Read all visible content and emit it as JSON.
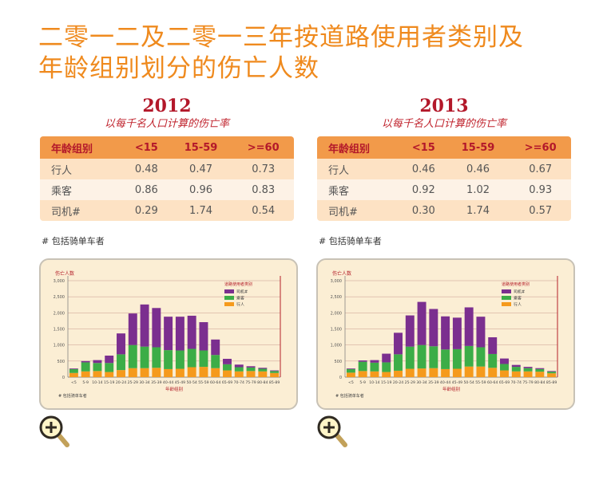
{
  "title": {
    "line1": "二零一二及二零一三年按道路使用者类别及",
    "line2": "年龄组别划分的伤亡人数"
  },
  "panels": [
    {
      "year": "2012",
      "subtitle": "以每千名人口计算的伤亡率",
      "headers": [
        "年龄组别",
        "<15",
        "15-59",
        ">=60"
      ],
      "rows": [
        {
          "label": "行人",
          "values": [
            "0.48",
            "0.47",
            "0.73"
          ]
        },
        {
          "label": "乘客",
          "values": [
            "0.86",
            "0.96",
            "0.83"
          ]
        },
        {
          "label": "司机#",
          "values": [
            "0.29",
            "1.74",
            "0.54"
          ]
        }
      ],
      "footnote": "# 包括骑单车者"
    },
    {
      "year": "2013",
      "subtitle": "以每千名人口计算的伤亡率",
      "headers": [
        "年龄组别",
        "<15",
        "15-59",
        ">=60"
      ],
      "rows": [
        {
          "label": "行人",
          "values": [
            "0.46",
            "0.46",
            "0.67"
          ]
        },
        {
          "label": "乘客",
          "values": [
            "0.92",
            "1.02",
            "0.93"
          ]
        },
        {
          "label": "司机#",
          "values": [
            "0.30",
            "1.74",
            "0.57"
          ]
        }
      ],
      "footnote": "# 包括骑单车者"
    }
  ],
  "colors": {
    "driver": "#7b2f8f",
    "passenger": "#3cad47",
    "pedestrian": "#f59a1c",
    "axis_right": "#b4202a",
    "grid": "#c9998e"
  },
  "chart_data": [
    {
      "type": "bar",
      "stacked": true,
      "ylabel": "伤亡人数",
      "xlabel": "年龄组别",
      "ylim": [
        0,
        3000
      ],
      "yticks": [
        "0",
        "500",
        "1,000",
        "1,500",
        "2,000",
        "2,500",
        "3,000"
      ],
      "legend_title": "道路使用者类别",
      "legend_position": "top-right",
      "footnote": "# 包括骑单车者",
      "categories": [
        "<5",
        "5-9",
        "10-14",
        "15-19",
        "20-24",
        "25-29",
        "30-34",
        "35-39",
        "40-44",
        "45-49",
        "50-54",
        "55-59",
        "60-64",
        "65-69",
        "70-74",
        "75-79",
        "80-84",
        "85-89"
      ],
      "series": [
        {
          "name": "行人",
          "values": [
            130,
            180,
            190,
            160,
            220,
            280,
            280,
            290,
            250,
            260,
            310,
            320,
            280,
            210,
            180,
            190,
            180,
            130
          ]
        },
        {
          "name": "乘客",
          "values": [
            120,
            280,
            250,
            280,
            490,
            720,
            670,
            640,
            590,
            570,
            570,
            510,
            410,
            190,
            130,
            110,
            80,
            60
          ]
        },
        {
          "name": "司机#",
          "values": [
            20,
            40,
            90,
            230,
            650,
            980,
            1310,
            1220,
            1040,
            1050,
            1030,
            880,
            480,
            170,
            80,
            40,
            30,
            20
          ]
        }
      ]
    },
    {
      "type": "bar",
      "stacked": true,
      "ylabel": "伤亡人数",
      "xlabel": "年龄组别",
      "ylim": [
        0,
        3000
      ],
      "yticks": [
        "0",
        "500",
        "1,000",
        "1,500",
        "2,000",
        "2,500",
        "3,000"
      ],
      "legend_title": "道路使用者类别",
      "legend_position": "top-right",
      "footnote": "# 包括骑单车者",
      "categories": [
        "<5",
        "5-9",
        "10-14",
        "15-19",
        "20-24",
        "25-29",
        "30-34",
        "35-39",
        "40-44",
        "45-49",
        "50-54",
        "55-59",
        "60-64",
        "65-69",
        "70-74",
        "75-79",
        "80-84",
        "85-89"
      ],
      "series": [
        {
          "name": "行人",
          "values": [
            140,
            190,
            180,
            160,
            200,
            260,
            270,
            280,
            250,
            260,
            330,
            330,
            290,
            210,
            180,
            180,
            170,
            120
          ]
        },
        {
          "name": "乘客",
          "values": [
            110,
            290,
            270,
            300,
            510,
            690,
            730,
            680,
            610,
            610,
            640,
            600,
            430,
            200,
            140,
            100,
            80,
            50
          ]
        },
        {
          "name": "司机#",
          "values": [
            20,
            40,
            80,
            270,
            670,
            970,
            1340,
            1160,
            1030,
            980,
            1200,
            950,
            520,
            170,
            60,
            40,
            30,
            20
          ]
        }
      ]
    }
  ]
}
